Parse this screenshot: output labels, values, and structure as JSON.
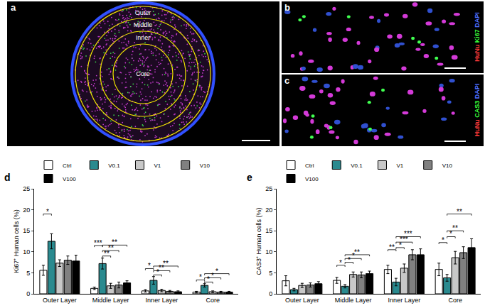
{
  "images": {
    "a": {
      "label": "a",
      "rings": [
        "Outer",
        "Middle",
        "Inner",
        "Core"
      ]
    },
    "b": {
      "label": "b",
      "stains": [
        {
          "text": "HuNu",
          "color": "#ff3b3b"
        },
        {
          "text": "Ki67",
          "color": "#3bff3b"
        },
        {
          "text": "DAPI",
          "color": "#5070ff"
        }
      ]
    },
    "c": {
      "label": "c",
      "stains": [
        {
          "text": "HuNu",
          "color": "#ff3b3b"
        },
        {
          "text": "CAS3",
          "color": "#3bff3b"
        },
        {
          "text": "DAPI",
          "color": "#5070ff"
        }
      ]
    }
  },
  "chart_data": [
    {
      "panel": "d",
      "type": "bar",
      "ylabel": "Ki67⁺ Human cells (%)",
      "categories": [
        "Outer Layer",
        "Middle Layer",
        "Inner Layer",
        "Core"
      ],
      "series": [
        {
          "name": "Ctrl",
          "color": "#ffffff",
          "values": [
            5.6,
            1.3,
            0.7,
            0.4
          ],
          "errors": [
            1.2,
            0.3,
            0.3,
            0.2
          ]
        },
        {
          "name": "V0.1",
          "color": "#2a8a8f",
          "values": [
            12.5,
            7.2,
            3.2,
            2.0
          ],
          "errors": [
            1.8,
            1.3,
            0.9,
            0.4
          ]
        },
        {
          "name": "V1",
          "color": "#c8c8c8",
          "values": [
            7.3,
            1.9,
            0.8,
            0.5
          ],
          "errors": [
            0.8,
            0.6,
            0.3,
            0.2
          ]
        },
        {
          "name": "V10",
          "color": "#808080",
          "values": [
            8.0,
            2.1,
            0.6,
            0.4
          ],
          "errors": [
            1.0,
            0.7,
            0.2,
            0.2
          ]
        },
        {
          "name": "V100",
          "color": "#000000",
          "values": [
            7.8,
            2.6,
            0.5,
            0.4
          ],
          "errors": [
            1.4,
            0.5,
            0.2,
            0.2
          ]
        }
      ],
      "ylim": [
        0,
        25
      ],
      "yticks": [
        0,
        5,
        10,
        15,
        20,
        25
      ],
      "grid": false,
      "legend": "top-left",
      "significance": [
        {
          "category": "Outer Layer",
          "from": "Ctrl",
          "to": "V0.1",
          "y": 19,
          "label": "*"
        },
        {
          "category": "Middle Layer",
          "from": "Ctrl",
          "to": "V0.1",
          "y": 11.5,
          "label": "***"
        },
        {
          "category": "Middle Layer",
          "from": "V0.1",
          "to": "V1",
          "y": 9.0,
          "label": "**"
        },
        {
          "category": "Middle Layer",
          "from": "V0.1",
          "to": "V10",
          "y": 10.3,
          "label": "**"
        },
        {
          "category": "Middle Layer",
          "from": "V0.1",
          "to": "V100",
          "y": 11.6,
          "label": "**"
        },
        {
          "category": "Inner Layer",
          "from": "Ctrl",
          "to": "V0.1",
          "y": 6.0,
          "label": "*"
        },
        {
          "category": "Inner Layer",
          "from": "V0.1",
          "to": "V1",
          "y": 4.5,
          "label": "*"
        },
        {
          "category": "Inner Layer",
          "from": "V0.1",
          "to": "V10",
          "y": 5.5,
          "label": "**"
        },
        {
          "category": "Inner Layer",
          "from": "V0.1",
          "to": "V100",
          "y": 6.6,
          "label": "**"
        },
        {
          "category": "Core",
          "from": "Ctrl",
          "to": "V0.1",
          "y": 3.3,
          "label": "*"
        },
        {
          "category": "Core",
          "from": "V0.1",
          "to": "V1",
          "y": 2.8,
          "label": "*"
        },
        {
          "category": "Core",
          "from": "V0.1",
          "to": "V10",
          "y": 3.8,
          "label": "*"
        },
        {
          "category": "Core",
          "from": "V0.1",
          "to": "V100",
          "y": 4.8,
          "label": "*"
        }
      ]
    },
    {
      "panel": "e",
      "type": "bar",
      "ylabel": "CAS3⁺ Human cells (%)",
      "categories": [
        "Outer Layer",
        "Middle Layer",
        "Inner Layer",
        "Core"
      ],
      "series": [
        {
          "name": "Ctrl",
          "color": "#ffffff",
          "values": [
            3.1,
            3.2,
            5.8,
            5.8
          ],
          "errors": [
            1.2,
            0.7,
            1.0,
            1.5
          ]
        },
        {
          "name": "V0.1",
          "color": "#2a8a8f",
          "values": [
            1.0,
            1.8,
            2.8,
            3.8
          ],
          "errors": [
            0.3,
            0.4,
            0.9,
            0.8
          ]
        },
        {
          "name": "V1",
          "color": "#c8c8c8",
          "values": [
            2.0,
            4.6,
            6.1,
            8.6
          ],
          "errors": [
            0.5,
            0.6,
            1.0,
            1.5
          ]
        },
        {
          "name": "V10",
          "color": "#808080",
          "values": [
            2.1,
            4.5,
            9.3,
            9.8
          ],
          "errors": [
            0.5,
            0.7,
            1.2,
            1.4
          ]
        },
        {
          "name": "V100",
          "color": "#000000",
          "values": [
            2.4,
            4.8,
            9.3,
            11.0
          ],
          "errors": [
            0.5,
            0.6,
            1.4,
            2.1
          ]
        }
      ],
      "ylim": [
        0,
        25
      ],
      "yticks": [
        0,
        5,
        10,
        15,
        20,
        25
      ],
      "grid": false,
      "legend": "top-left",
      "significance": [
        {
          "category": "Middle Layer",
          "from": "Ctrl",
          "to": "V0.1",
          "y": 6.8,
          "label": "*"
        },
        {
          "category": "Middle Layer",
          "from": "V0.1",
          "to": "V1",
          "y": 7.5,
          "label": "*"
        },
        {
          "category": "Middle Layer",
          "from": "V0.1",
          "to": "V10",
          "y": 8.4,
          "label": "*"
        },
        {
          "category": "Middle Layer",
          "from": "V0.1",
          "to": "V100",
          "y": 9.3,
          "label": "**"
        },
        {
          "category": "Inner Layer",
          "from": "Ctrl",
          "to": "V0.1",
          "y": 10.5,
          "label": "**"
        },
        {
          "category": "Inner Layer",
          "from": "V0.1",
          "to": "V1",
          "y": 11.0,
          "label": "*"
        },
        {
          "category": "Inner Layer",
          "from": "V0.1",
          "to": "V10",
          "y": 12.3,
          "label": "***"
        },
        {
          "category": "Inner Layer",
          "from": "V0.1",
          "to": "V100",
          "y": 13.6,
          "label": "***"
        },
        {
          "category": "Core",
          "from": "Ctrl",
          "to": "V0.1",
          "y": 12.2,
          "label": "*"
        },
        {
          "category": "Core",
          "from": "V0.1",
          "to": "V1",
          "y": 13.6,
          "label": "*"
        },
        {
          "category": "Core",
          "from": "V0.1",
          "to": "V10",
          "y": 15.0,
          "label": "**"
        },
        {
          "category": "Core",
          "from": "V0.1",
          "to": "V100",
          "y": 19.0,
          "label": "**"
        }
      ]
    }
  ]
}
